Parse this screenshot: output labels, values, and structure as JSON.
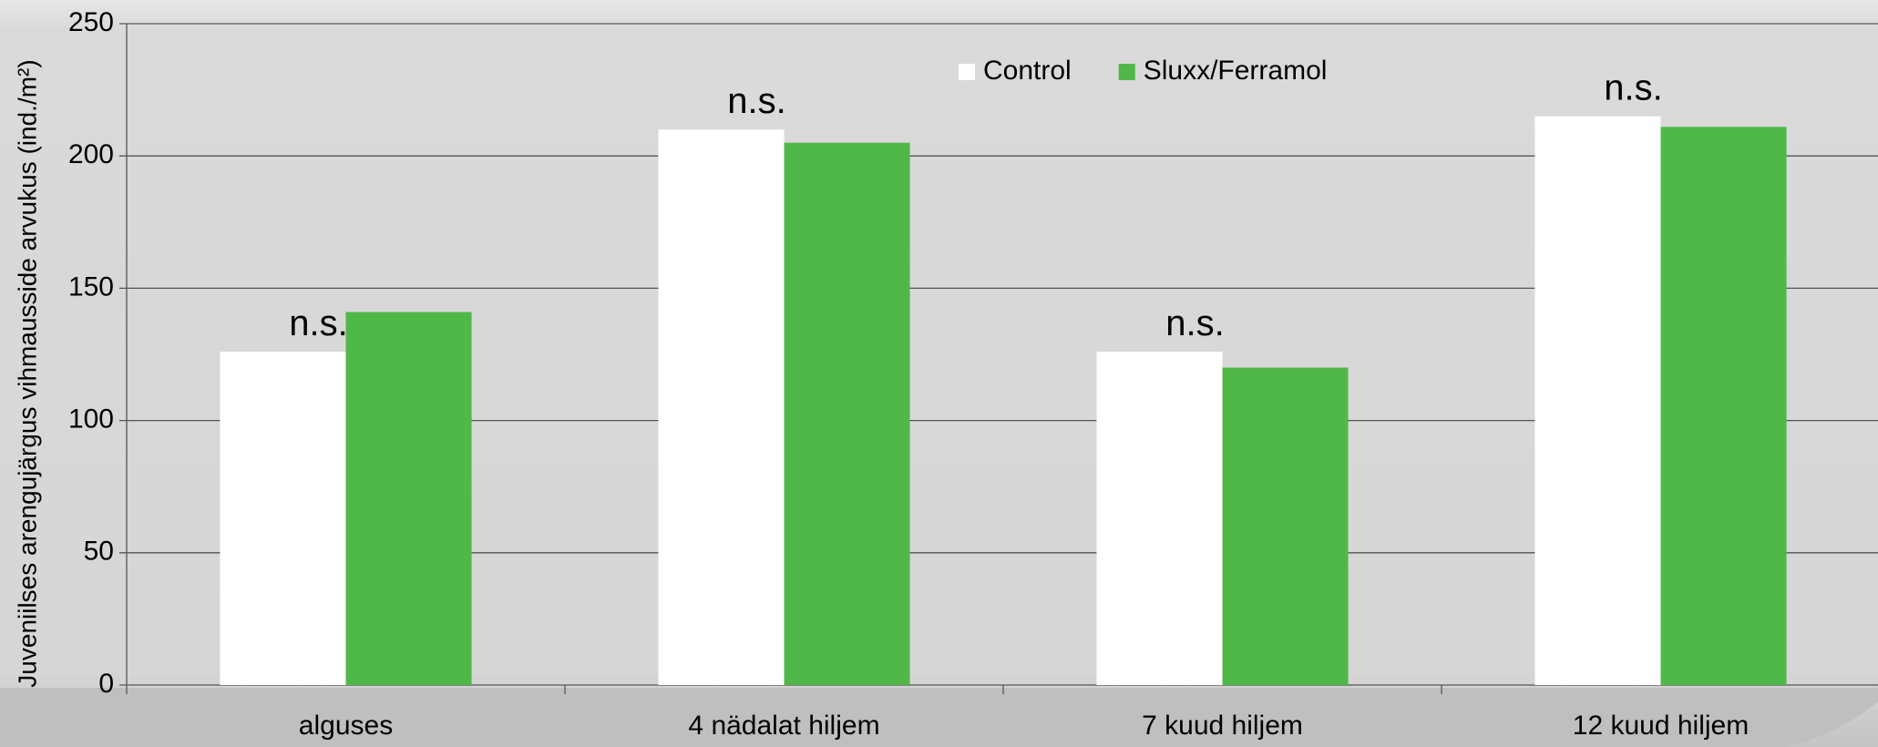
{
  "chart_data": {
    "type": "bar",
    "ylabel": "Juveniilses arengujärgus vihmausside arvukus (ind./m²)",
    "categories": [
      "alguses",
      "4 nädalat hiljem",
      "7 kuud hiljem",
      "12 kuud hiljem"
    ],
    "series": [
      {
        "name": "Control",
        "color": "#ffffff",
        "values": [
          126,
          210,
          126,
          215
        ]
      },
      {
        "name": "Sluxx/Ferramol",
        "color": "#50b848",
        "values": [
          141,
          205,
          120,
          211
        ]
      }
    ],
    "annotations": [
      "n.s.",
      "n.s.",
      "n.s.",
      "n.s."
    ],
    "ylim": [
      0,
      250
    ],
    "yticks": [
      0,
      50,
      100,
      150,
      200,
      250
    ],
    "grid": true,
    "legend": "top"
  }
}
